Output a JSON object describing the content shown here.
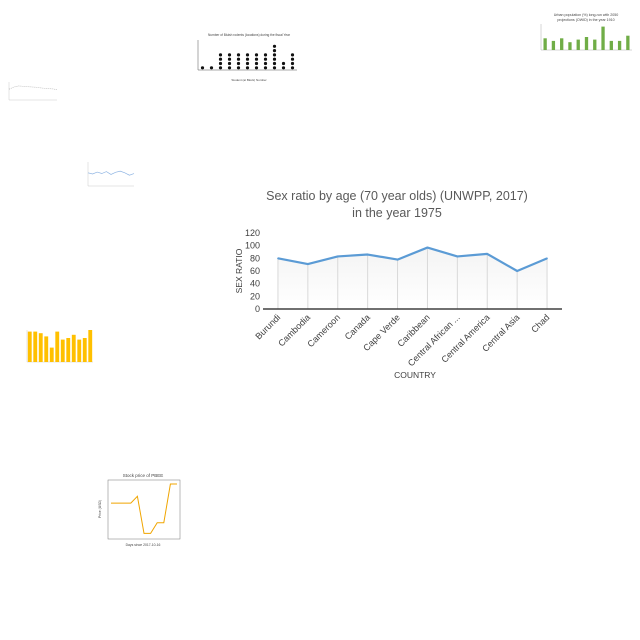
{
  "chart_data": {
    "type": "line",
    "title_line1": "Sex ratio by age (70 year olds) (UNWPP, 2017)",
    "title_line2": "in the year 1975",
    "xlabel": "COUNTRY",
    "ylabel": "SEX RATIO",
    "categories": [
      "Burundi",
      "Cambodia",
      "Cameroon",
      "Canada",
      "Cape Verde",
      "Caribbean",
      "Central African ...",
      "Central America",
      "Central Asia",
      "Chad"
    ],
    "values": [
      80,
      71,
      83,
      86,
      78,
      97,
      83,
      87,
      60,
      80
    ],
    "ylim": [
      0,
      120
    ],
    "yticks": [
      0,
      20,
      40,
      60,
      80,
      100,
      120
    ],
    "line_color": "#5b9bd5",
    "grid": "vertical"
  },
  "thumbnails": {
    "dot_plot": {
      "title": "Number of Bluish rodents (locations) during the fiscal Year",
      "xlabel": "Student (at Block) Number",
      "values": [
        1,
        1,
        4,
        4,
        4,
        4,
        4,
        4,
        6,
        2,
        4
      ],
      "color": "#111111"
    },
    "green_bar": {
      "title_line1": "Urban population (%) long-run with 2050",
      "title_line2": "projections (OWID) in the year 1910",
      "values": [
        0.45,
        0.35,
        0.45,
        0.3,
        0.4,
        0.5,
        0.4,
        0.9,
        0.35,
        0.35,
        0.55
      ],
      "color": "#70ad47"
    },
    "gray_line": {
      "values": [
        60,
        72,
        78,
        76,
        74,
        72,
        70,
        66,
        64,
        62,
        58
      ],
      "color": "#aaaaaa"
    },
    "blue_line": {
      "values": [
        55,
        50,
        58,
        52,
        60,
        48,
        57,
        62,
        55,
        45,
        52
      ],
      "color": "#8eb4e3"
    },
    "yellow_bar": {
      "values": [
        0.95,
        0.95,
        0.9,
        0.8,
        0.45,
        0.95,
        0.7,
        0.75,
        0.85,
        0.7,
        0.75,
        1.0
      ],
      "color": "#ffc000"
    },
    "stock": {
      "title": "Stock price of PBEE",
      "xlabel": "Days since 2017-10-16",
      "ylabel": "Price (USD)",
      "values": [
        0.62,
        0.62,
        0.62,
        0.62,
        0.75,
        0.05,
        0.05,
        0.25,
        0.25,
        0.98,
        0.98
      ],
      "color": "#f0a500"
    }
  }
}
